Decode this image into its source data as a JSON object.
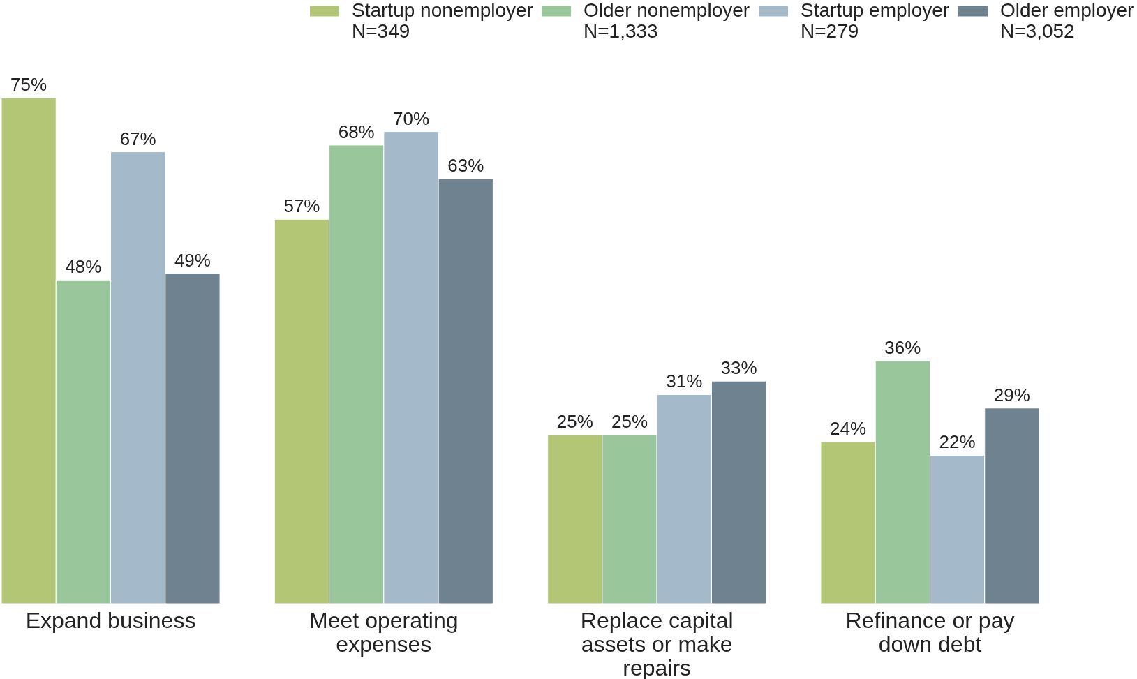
{
  "chart_data": {
    "type": "bar",
    "categories": [
      "Expand business",
      "Meet operating expenses",
      "Replace capital assets or make repairs",
      "Refinance or pay down debt"
    ],
    "series": [
      {
        "name": "Startup nonemployer N=349",
        "color": "#b3c676",
        "values": [
          75,
          57,
          25,
          24
        ],
        "value_labels": [
          "75%",
          "57%",
          "25%",
          "24%"
        ]
      },
      {
        "name": "Older nonemployer N=1,333",
        "color": "#9ac69c",
        "values": [
          48,
          68,
          25,
          36
        ],
        "value_labels": [
          "48%",
          "68%",
          "25%",
          "36%"
        ]
      },
      {
        "name": "Startup employer N=279",
        "color": "#a4b9ca",
        "values": [
          67,
          70,
          31,
          22
        ],
        "value_labels": [
          "67%",
          "70%",
          "31%",
          "22%"
        ]
      },
      {
        "name": "Older employer N=3,052",
        "color": "#6e838f",
        "values": [
          49,
          63,
          33,
          29
        ],
        "value_labels": [
          "49%",
          "63%",
          "33%",
          "29%"
        ]
      }
    ],
    "tick_labels": "x",
    "grid": false,
    "legend": "top right"
  }
}
